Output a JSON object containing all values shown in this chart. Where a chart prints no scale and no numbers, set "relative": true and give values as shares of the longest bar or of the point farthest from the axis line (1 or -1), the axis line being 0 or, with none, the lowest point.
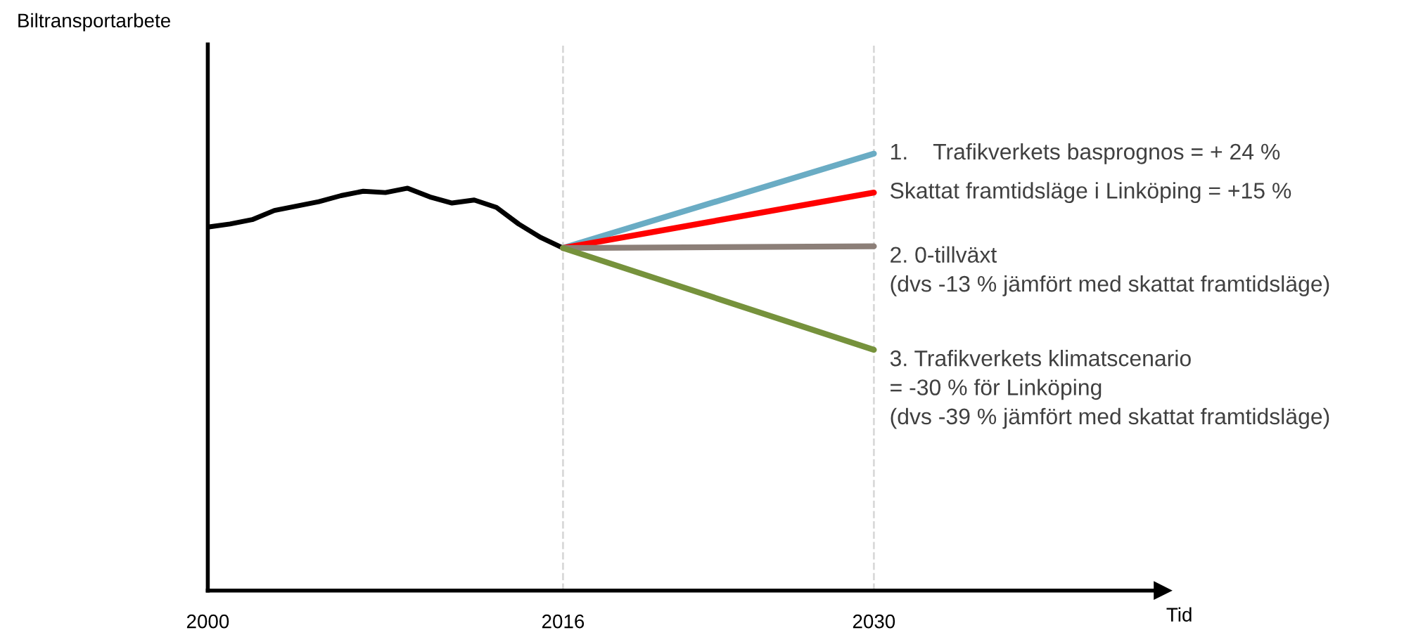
{
  "chart_data": {
    "type": "line",
    "relative": true,
    "xlabel": "Tid",
    "xlim": [
      2000,
      2043
    ],
    "xticks": [
      2000,
      2016,
      2030
    ],
    "tick_labels": "x",
    "grid": false,
    "legend": false,
    "marker": "none",
    "line_style": "solid",
    "series": [
      {
        "color": "#000000",
        "x": [
          2000,
          2001,
          2002,
          2003,
          2004,
          2005,
          2006,
          2007,
          2008,
          2009,
          2010,
          2011,
          2012,
          2013,
          2014,
          2015,
          2016
        ],
        "values": [
          0.832,
          0.839,
          0.849,
          0.87,
          0.88,
          0.89,
          0.904,
          0.914,
          0.911,
          0.921,
          0.901,
          0.887,
          0.894,
          0.877,
          0.839,
          0.808,
          0.784
        ]
      },
      {
        "name": "1.    Trafikverkets basprognos = + 24 %",
        "color": "#6aacc4",
        "x": [
          2016,
          2030
        ],
        "values": [
          0.784,
          1.0
        ]
      },
      {
        "name": "Skattat framtidsläge i Linköping = +15 %",
        "color": "#ff0000",
        "x": [
          2016,
          2030
        ],
        "values": [
          0.784,
          0.911
        ]
      },
      {
        "name": "2. 0-tillväxt\n(dvs -13 % jämfört med skattat framtidsläge)",
        "color": "#8c7f78",
        "x": [
          2016,
          2030
        ],
        "values": [
          0.784,
          0.788
        ]
      },
      {
        "name": "3. Trafikverkets klimatscenario\n= -30 % för Linköping\n(dvs -39 % jämfört med skattat framtidsläge)",
        "color": "#76923c",
        "x": [
          2016,
          2030
        ],
        "values": [
          0.784,
          0.551
        ]
      }
    ],
    "ref_lines": [
      {
        "axis": "x",
        "value": 2016,
        "color": "#d9d9d9",
        "line_style": "dashed"
      },
      {
        "axis": "x",
        "value": 2030,
        "color": "#d9d9d9",
        "line_style": "dashed"
      }
    ],
    "annotations": [
      "Biltransportarbete"
    ]
  }
}
